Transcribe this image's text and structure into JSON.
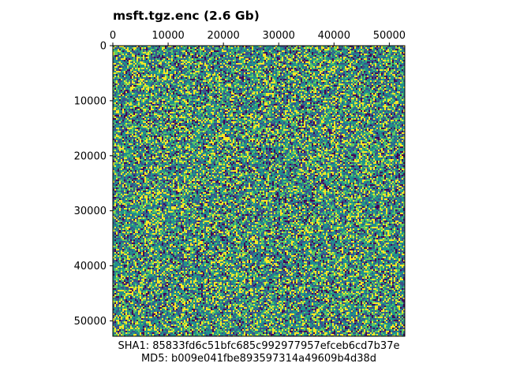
{
  "chart_data": {
    "type": "heatmap",
    "title": "msft.tgz.enc (2.6 Gb)",
    "colormap": "viridis",
    "x_axis": {
      "position": "top",
      "range": [
        0,
        52800
      ],
      "ticks": [
        0,
        10000,
        20000,
        30000,
        40000,
        50000
      ],
      "tick_labels": [
        "0",
        "10000",
        "20000",
        "30000",
        "40000",
        "50000"
      ]
    },
    "y_axis": {
      "position": "left",
      "range": [
        0,
        52800
      ],
      "inverted": true,
      "ticks": [
        0,
        10000,
        20000,
        30000,
        40000,
        50000
      ],
      "tick_labels": [
        "0",
        "10000",
        "20000",
        "30000",
        "40000",
        "50000"
      ]
    },
    "values_description": "",
    "grid": false,
    "legend": "none"
  },
  "footer": {
    "sha1": "SHA1: 85833fd6c51bfc685c992977957efceb6cd7b37e",
    "md5": "MD5: b009e041fbe893597314a49609b4d38d"
  },
  "colors": {
    "viridis": [
      "#440154",
      "#3b528b",
      "#21918c",
      "#5ec962",
      "#fde725"
    ]
  }
}
